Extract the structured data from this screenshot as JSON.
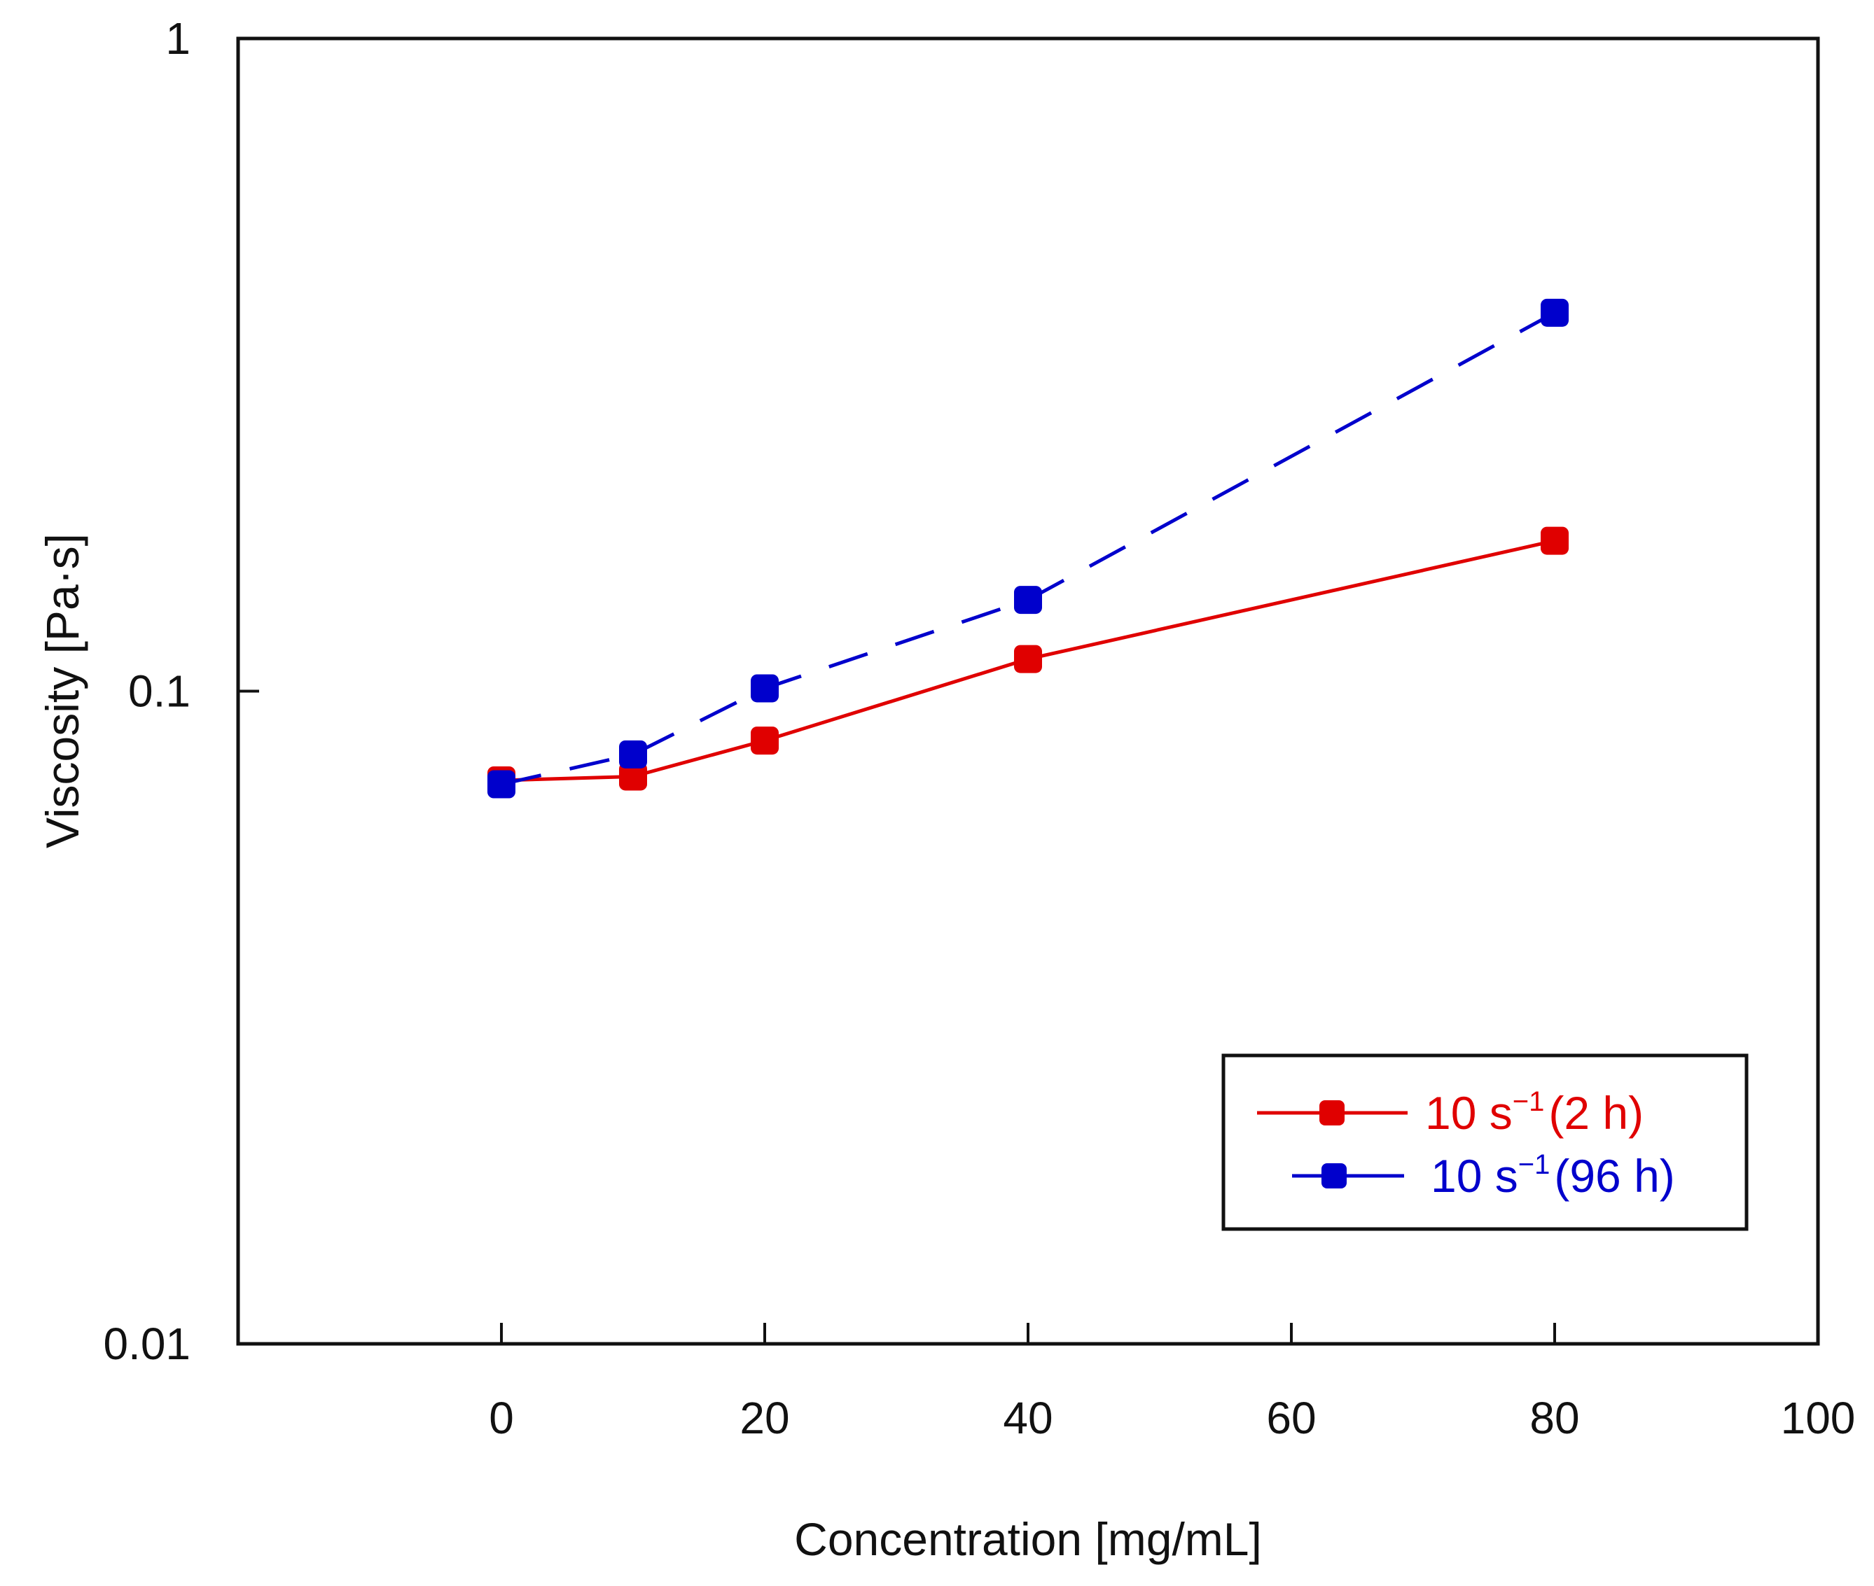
{
  "chart_data": {
    "type": "line",
    "title": "",
    "xlabel": "Concentration [mg/mL]",
    "ylabel": "Viscosity [Pa·s]",
    "xlim": [
      -20,
      100
    ],
    "ylim": [
      0.01,
      1
    ],
    "yscale": "log",
    "x_ticks": [
      0,
      20,
      40,
      60,
      80,
      100
    ],
    "x_tick_labels": [
      "0",
      "20",
      "40",
      "60",
      "80",
      "100"
    ],
    "y_ticks": [
      0.01,
      0.1,
      1
    ],
    "y_tick_labels": [
      "0.01",
      "0.1",
      "1"
    ],
    "legend_position": "bottom-right",
    "series": [
      {
        "name": "10 s⁻¹ (2 h)",
        "legend_main": "10 s",
        "legend_sup": "−1",
        "legend_tail": "(2 h)",
        "color": "#e00000",
        "line_style": "solid",
        "x": [
          0,
          10,
          20,
          40,
          80
        ],
        "y": [
          0.073,
          0.074,
          0.084,
          0.112,
          0.17
        ]
      },
      {
        "name": "10 s⁻¹ (96 h)",
        "legend_main": "10 s",
        "legend_sup": "−1",
        "legend_tail": "(96 h)",
        "color": "#0000cc",
        "line_style": "dashed",
        "x": [
          0,
          10,
          20,
          40,
          80
        ],
        "y": [
          0.072,
          0.08,
          0.101,
          0.138,
          0.38
        ]
      }
    ]
  }
}
